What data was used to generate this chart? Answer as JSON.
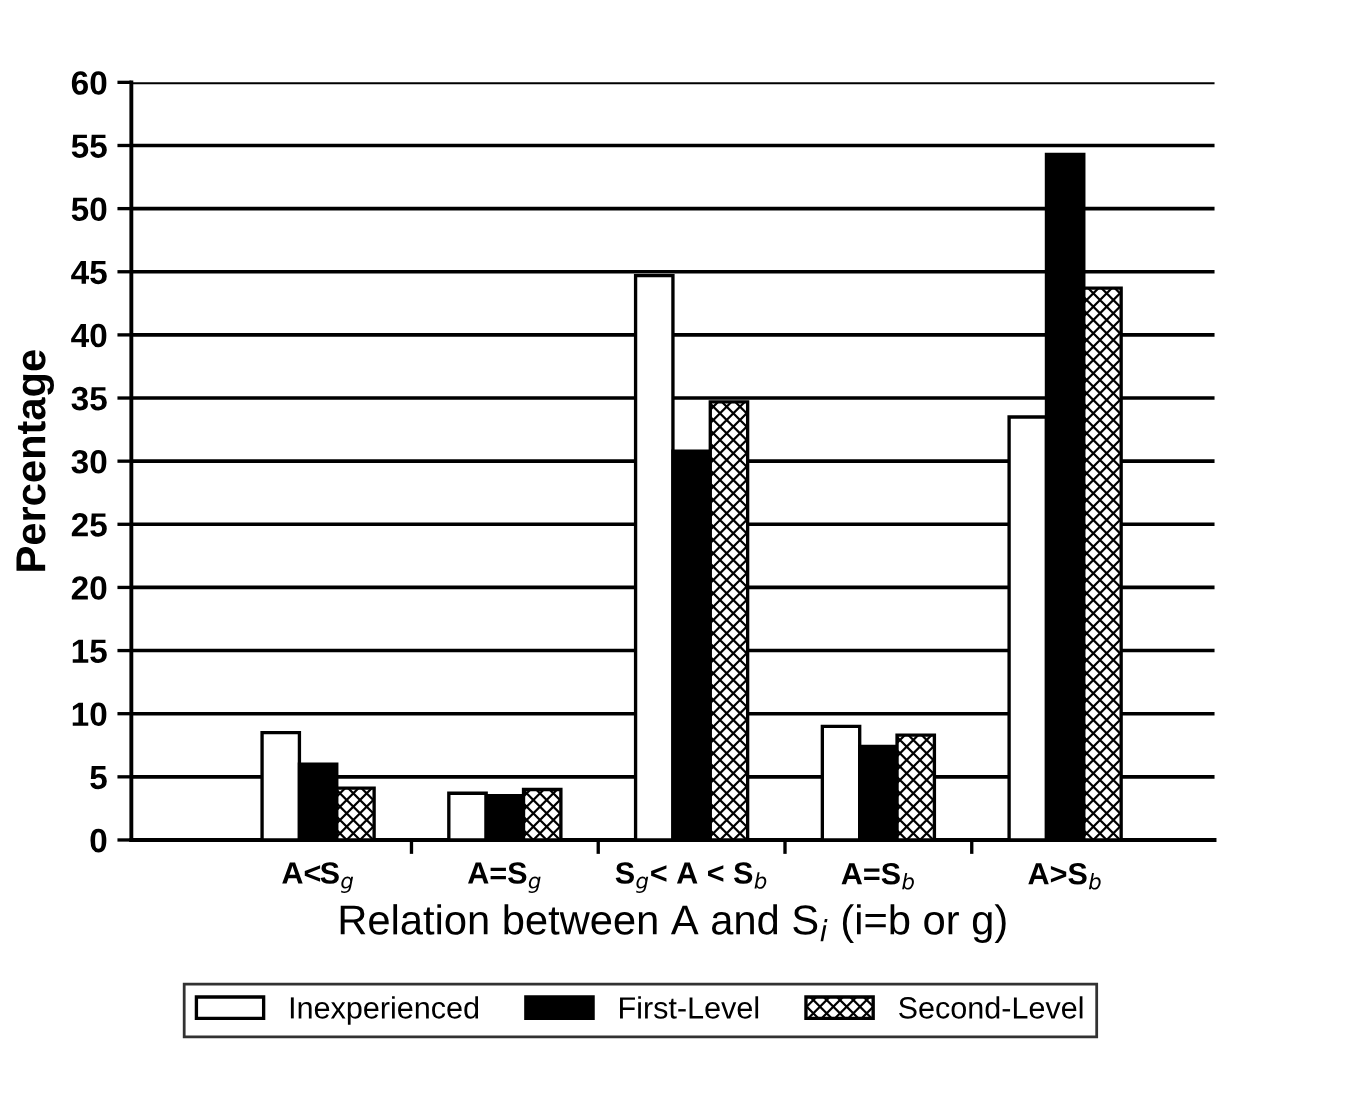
{
  "chart_data": {
    "type": "bar",
    "categories": [
      "A<S$_{g}$",
      "A=S$_{g}$",
      "S$_{g}$< A < S$_{b}$",
      "A=S$_{b}$",
      "A>S$_{b}$"
    ],
    "xlabel": "Relation between A and S$_{i}$ (i=b or g)",
    "ylabel": "Percentage",
    "series": [
      {
        "name": "Inexperienced",
        "color": "#ffffff",
        "values": [
          8.5,
          3.7,
          44.7,
          9.0,
          33.5
        ]
      },
      {
        "name": "First-Level",
        "color": "#000000",
        "values": [
          6.0,
          3.5,
          30.8,
          7.4,
          54.3
        ]
      },
      {
        "name": "Second-Level",
        "color": "#000000",
        "values": [
          4.1,
          4.0,
          34.7,
          8.3,
          43.7
        ]
      }
    ],
    "ylim": [
      0,
      60
    ],
    "yticks": [
      0,
      5,
      10,
      15,
      20,
      25,
      30,
      35,
      40,
      45,
      50,
      55,
      60
    ],
    "grid": "y",
    "legend": "bottom"
  }
}
